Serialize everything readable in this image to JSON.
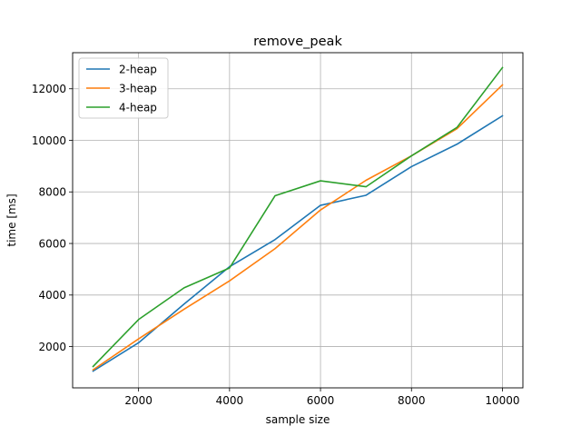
{
  "chart_data": {
    "type": "line",
    "title": "remove_peak",
    "xlabel": "sample size",
    "ylabel": "time [ms]",
    "x": [
      1000,
      2000,
      3000,
      4000,
      5000,
      6000,
      7000,
      8000,
      9000,
      10000
    ],
    "xlim": [
      550,
      10450
    ],
    "ylim": [
      400,
      13400
    ],
    "xticks": [
      2000,
      4000,
      6000,
      8000,
      10000
    ],
    "yticks": [
      2000,
      4000,
      6000,
      8000,
      10000,
      12000
    ],
    "grid": true,
    "legend_position": "top-left",
    "series": [
      {
        "name": "2-heap",
        "color": "#1f77b4",
        "values": [
          1050,
          2150,
          3650,
          5100,
          6150,
          7480,
          7870,
          8980,
          9850,
          10950
        ]
      },
      {
        "name": "3-heap",
        "color": "#ff7f0e",
        "values": [
          1100,
          2300,
          3450,
          4550,
          5800,
          7300,
          8450,
          9400,
          10450,
          12150
        ]
      },
      {
        "name": "4-heap",
        "color": "#2ca02c",
        "values": [
          1230,
          3050,
          4280,
          5050,
          7850,
          8430,
          8200,
          9400,
          10500,
          12820
        ]
      }
    ]
  }
}
